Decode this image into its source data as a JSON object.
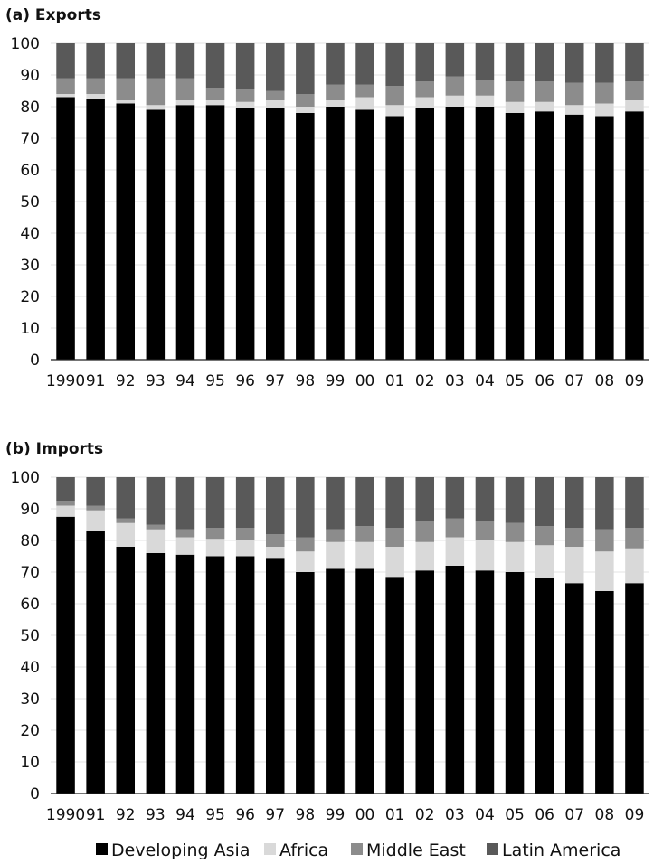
{
  "chart_data": [
    {
      "type": "bar",
      "stacked": true,
      "title": "(a) Exports",
      "xlabel": "",
      "ylabel": "",
      "ylim": [
        0,
        100
      ],
      "yticks": [
        0,
        10,
        20,
        30,
        40,
        50,
        60,
        70,
        80,
        90,
        100
      ],
      "grid": true,
      "categories": [
        "1990",
        "91",
        "92",
        "93",
        "94",
        "95",
        "96",
        "97",
        "98",
        "99",
        "00",
        "01",
        "02",
        "03",
        "04",
        "05",
        "06",
        "07",
        "08",
        "09"
      ],
      "series": [
        {
          "name": "Developing Asia",
          "color": "#000000",
          "values": [
            83,
            82.5,
            81,
            79,
            80.5,
            80.5,
            79.5,
            79.5,
            78,
            80,
            79,
            77,
            79.5,
            80,
            80,
            78,
            78.5,
            77.5,
            77,
            78.5
          ]
        },
        {
          "name": "Africa",
          "color": "#d9d9d9",
          "values": [
            1,
            1.5,
            1,
            1.5,
            1.5,
            1.5,
            2,
            2.5,
            2,
            2,
            4,
            3.5,
            3.5,
            3.5,
            3.5,
            3.5,
            3,
            3,
            4,
            3.5
          ]
        },
        {
          "name": "Middle East",
          "color": "#8c8c8c",
          "values": [
            5,
            5,
            7,
            8.5,
            7,
            4,
            4,
            3,
            4,
            5,
            4,
            6,
            5,
            6,
            5,
            6.5,
            6.5,
            7,
            6.5,
            6
          ]
        },
        {
          "name": "Latin America",
          "color": "#595959",
          "values": [
            11,
            11,
            11,
            11,
            11,
            14,
            14.5,
            15,
            16,
            13,
            13,
            13.5,
            12,
            10.5,
            11.5,
            12,
            12,
            12.5,
            12.5,
            12
          ]
        }
      ]
    },
    {
      "type": "bar",
      "stacked": true,
      "title": "(b) Imports",
      "xlabel": "",
      "ylabel": "",
      "ylim": [
        0,
        100
      ],
      "yticks": [
        0,
        10,
        20,
        30,
        40,
        50,
        60,
        70,
        80,
        90,
        100
      ],
      "grid": true,
      "categories": [
        "1990",
        "91",
        "92",
        "93",
        "94",
        "95",
        "96",
        "97",
        "98",
        "99",
        "00",
        "01",
        "02",
        "03",
        "04",
        "05",
        "06",
        "07",
        "08",
        "09"
      ],
      "series": [
        {
          "name": "Developing Asia",
          "color": "#000000",
          "values": [
            87.5,
            83,
            78,
            76,
            75.5,
            75,
            75,
            74.5,
            70,
            71,
            71,
            68.5,
            70.5,
            72,
            70.5,
            70,
            68,
            66.5,
            64,
            66.5
          ]
        },
        {
          "name": "Africa",
          "color": "#d9d9d9",
          "values": [
            3.5,
            6.5,
            7.5,
            7.5,
            5.5,
            5.5,
            5,
            3.5,
            6.5,
            8.5,
            8.5,
            9.5,
            9,
            9,
            9.5,
            9.5,
            10.5,
            11.5,
            12.5,
            11
          ]
        },
        {
          "name": "Middle East",
          "color": "#8c8c8c",
          "values": [
            1.5,
            1.5,
            1.5,
            1.5,
            2.5,
            3.5,
            4,
            4,
            4.5,
            4,
            5,
            6,
            6.5,
            6,
            6,
            6,
            6,
            6,
            7,
            6.5
          ]
        },
        {
          "name": "Latin America",
          "color": "#595959",
          "values": [
            7.5,
            9,
            13,
            15,
            16.5,
            16,
            16,
            18,
            19,
            16.5,
            15.5,
            16,
            14,
            13,
            14,
            14.5,
            15.5,
            16,
            16.5,
            16
          ]
        }
      ]
    }
  ],
  "legend": {
    "placement": "bottom",
    "items": [
      {
        "label": "Developing Asia",
        "color": "#000000"
      },
      {
        "label": "Africa",
        "color": "#d9d9d9"
      },
      {
        "label": "Middle East",
        "color": "#8c8c8c"
      },
      {
        "label": "Latin America",
        "color": "#595959"
      }
    ]
  }
}
